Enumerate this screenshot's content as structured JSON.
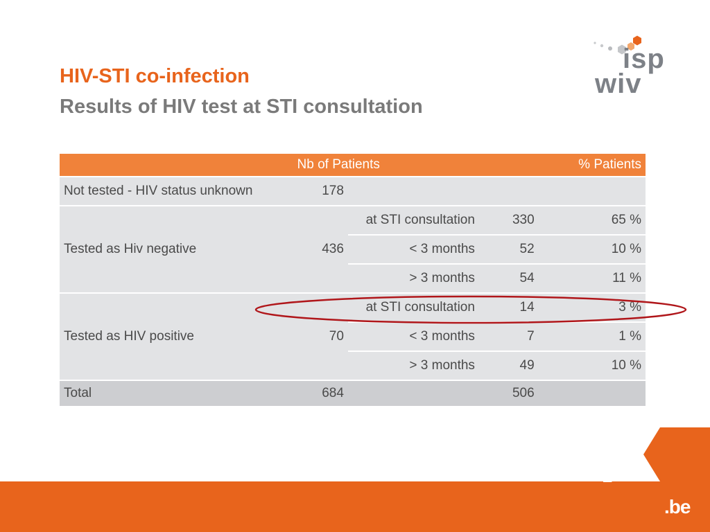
{
  "slide": {
    "title": "HIV-STI co-infection",
    "subtitle": "Results of HIV test at STI consultation"
  },
  "logo": {
    "line1": "isp",
    "line2": "wiv"
  },
  "table": {
    "header": {
      "nb_patients": "Nb of Patients",
      "pct_patients": "% Patients"
    },
    "groups": [
      {
        "label": "Not tested - HIV status unknown",
        "nb": "178",
        "rows": []
      },
      {
        "label": "Tested as Hiv negative",
        "nb": "436",
        "rows": [
          {
            "when": "at STI consultation",
            "count": "330",
            "pct": "65 %"
          },
          {
            "when": "< 3 months",
            "count": "52",
            "pct": "10 %"
          },
          {
            "when": "> 3 months",
            "count": "54",
            "pct": "11 %"
          }
        ]
      },
      {
        "label": "Tested as HIV positive",
        "nb": "70",
        "rows": [
          {
            "when": "at STI consultation",
            "count": "14",
            "pct": "3 %"
          },
          {
            "when": "< 3 months",
            "count": "7",
            "pct": "1 %"
          },
          {
            "when": "> 3 months",
            "count": "49",
            "pct": "10 %"
          }
        ]
      }
    ],
    "total": {
      "label": "Total",
      "nb": "684",
      "count": "506"
    }
  },
  "footer": {
    "brand": ".be"
  },
  "colors": {
    "accent": "#e8641c",
    "header_fill": "#f0823a",
    "row_fill": "#e2e3e5",
    "total_fill": "#cdced1",
    "highlight": "#b0161a"
  }
}
